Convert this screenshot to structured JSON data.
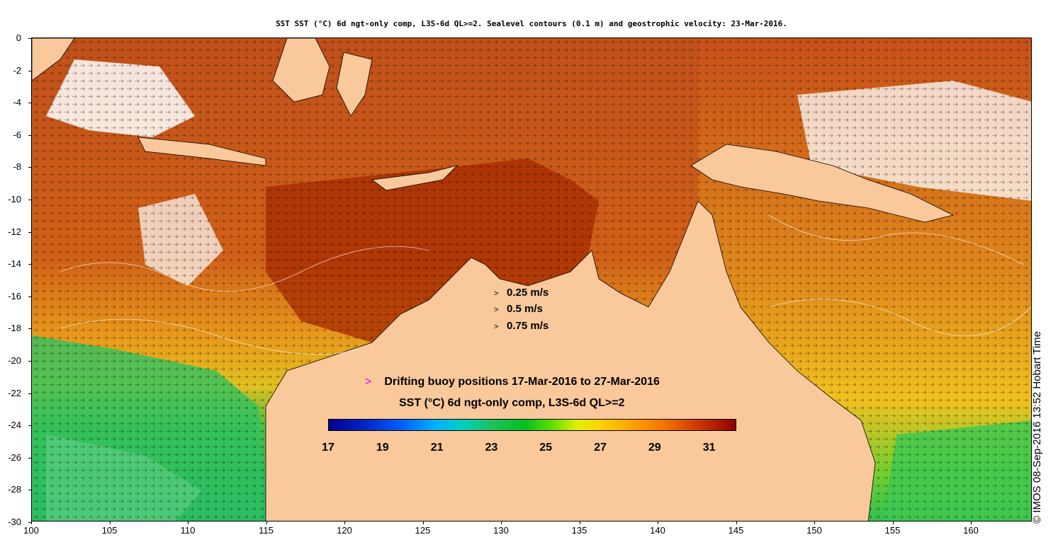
{
  "title": "SST SST (°C) 6d ngt-only comp, L3S-6d QL>=2. Sealevel contours (0.1 m) and geostrophic velocity: 23-Mar-2016.",
  "y_ticks": [
    "0",
    "-2",
    "-4",
    "-6",
    "-8",
    "-10",
    "-12",
    "-14",
    "-16",
    "-18",
    "-20",
    "-22",
    "-24",
    "-26",
    "-28",
    "-30"
  ],
  "x_ticks": [
    "100",
    "105",
    "110",
    "115",
    "120",
    "125",
    "130",
    "135",
    "140",
    "145",
    "150",
    "155",
    "160"
  ],
  "velocity_scale": [
    {
      "label": "0.25 m/s",
      "arrow": ">"
    },
    {
      "label": "0.5 m/s",
      "arrow": ">"
    },
    {
      "label": "0.75 m/s",
      "arrow": ">"
    }
  ],
  "buoy_legend": {
    "marker": ">",
    "label": "Drifting buoy positions 17-Mar-2016 to 27-Mar-2016",
    "marker_color": "#e000e0"
  },
  "colorbar": {
    "title": "SST (°C) 6d ngt-only comp, L3S-6d QL>=2",
    "ticks": [
      "17",
      "19",
      "21",
      "23",
      "25",
      "27",
      "29",
      "31"
    ],
    "range": [
      17,
      32
    ]
  },
  "credit": "© IMOS 08-Sep-2016 13:52 Hobart Time",
  "colors": {
    "land": "#f9c89b",
    "warm_sea": "#c84a10",
    "hot_sea": "#a52a00",
    "mid_sea": "#e8a020",
    "cool_sea": "#40c040",
    "cloud": "#ffffff"
  }
}
